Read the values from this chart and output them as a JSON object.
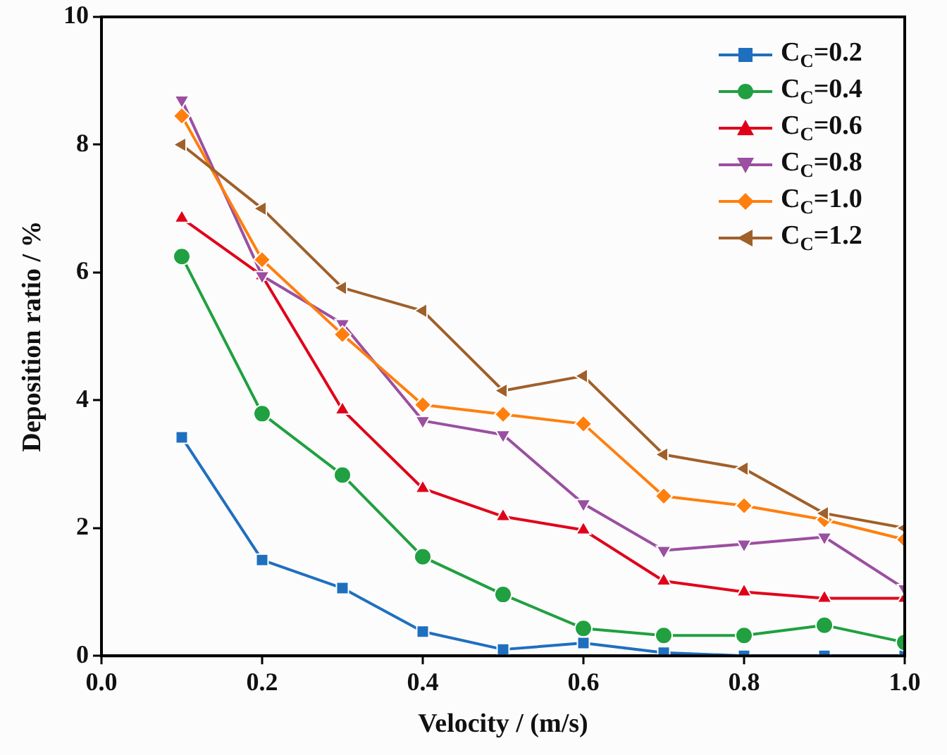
{
  "chart_data": {
    "type": "line",
    "xlabel": "Velocity / (m/s)",
    "ylabel": "Deposition ratio / %",
    "x": [
      0.1,
      0.2,
      0.3,
      0.4,
      0.5,
      0.6,
      0.7,
      0.8,
      0.9,
      1.0
    ],
    "xlim": [
      0,
      1
    ],
    "xticks": [
      {
        "value": 0,
        "label": "0.0"
      },
      {
        "value": 0.2,
        "label": "0.2"
      },
      {
        "value": 0.4,
        "label": "0.4"
      },
      {
        "value": 0.6,
        "label": "0.6"
      },
      {
        "value": 0.8,
        "label": "0.8"
      },
      {
        "value": 1,
        "label": "1.0"
      }
    ],
    "ylim": [
      0,
      10
    ],
    "yticks": [
      0,
      2,
      4,
      6,
      8,
      10
    ],
    "grid": false,
    "legend": "top right",
    "line_style": "solid",
    "series": [
      {
        "name": "C$_{C}$=0.2",
        "color": "#1f6fbf",
        "marker": "square",
        "values": [
          3.42,
          1.5,
          1.06,
          0.38,
          0.1,
          0.2,
          0.05,
          0,
          0,
          0
        ]
      },
      {
        "name": "C$_{C}$=0.4",
        "color": "#20a040",
        "marker": "circle",
        "values": [
          6.25,
          3.79,
          2.83,
          1.55,
          0.96,
          0.43,
          0.32,
          0.32,
          0.48,
          0.21
        ]
      },
      {
        "name": "C$_{C}$=0.6",
        "color": "#e0001a",
        "marker": "triangle",
        "values": [
          6.85,
          5.95,
          3.85,
          2.62,
          2.18,
          1.97,
          1.17,
          1.0,
          0.9,
          0.9
        ]
      },
      {
        "name": "C$_{C}$=0.8",
        "color": "#9b4fa0",
        "marker": "triangle-down",
        "values": [
          8.7,
          5.95,
          5.2,
          3.68,
          3.46,
          2.38,
          1.65,
          1.75,
          1.86,
          1.05
        ]
      },
      {
        "name": "C$_{C}$=1.0",
        "color": "#ff7f0e",
        "marker": "diamond",
        "values": [
          8.45,
          6.2,
          5.03,
          3.93,
          3.78,
          3.63,
          2.5,
          2.35,
          2.13,
          1.82
        ]
      },
      {
        "name": "C$_{C}$=1.2",
        "color": "#a0602a",
        "marker": "triangle-left",
        "values": [
          8.0,
          7.0,
          5.76,
          5.4,
          4.15,
          4.38,
          3.15,
          2.93,
          2.23,
          2.0
        ]
      }
    ]
  }
}
